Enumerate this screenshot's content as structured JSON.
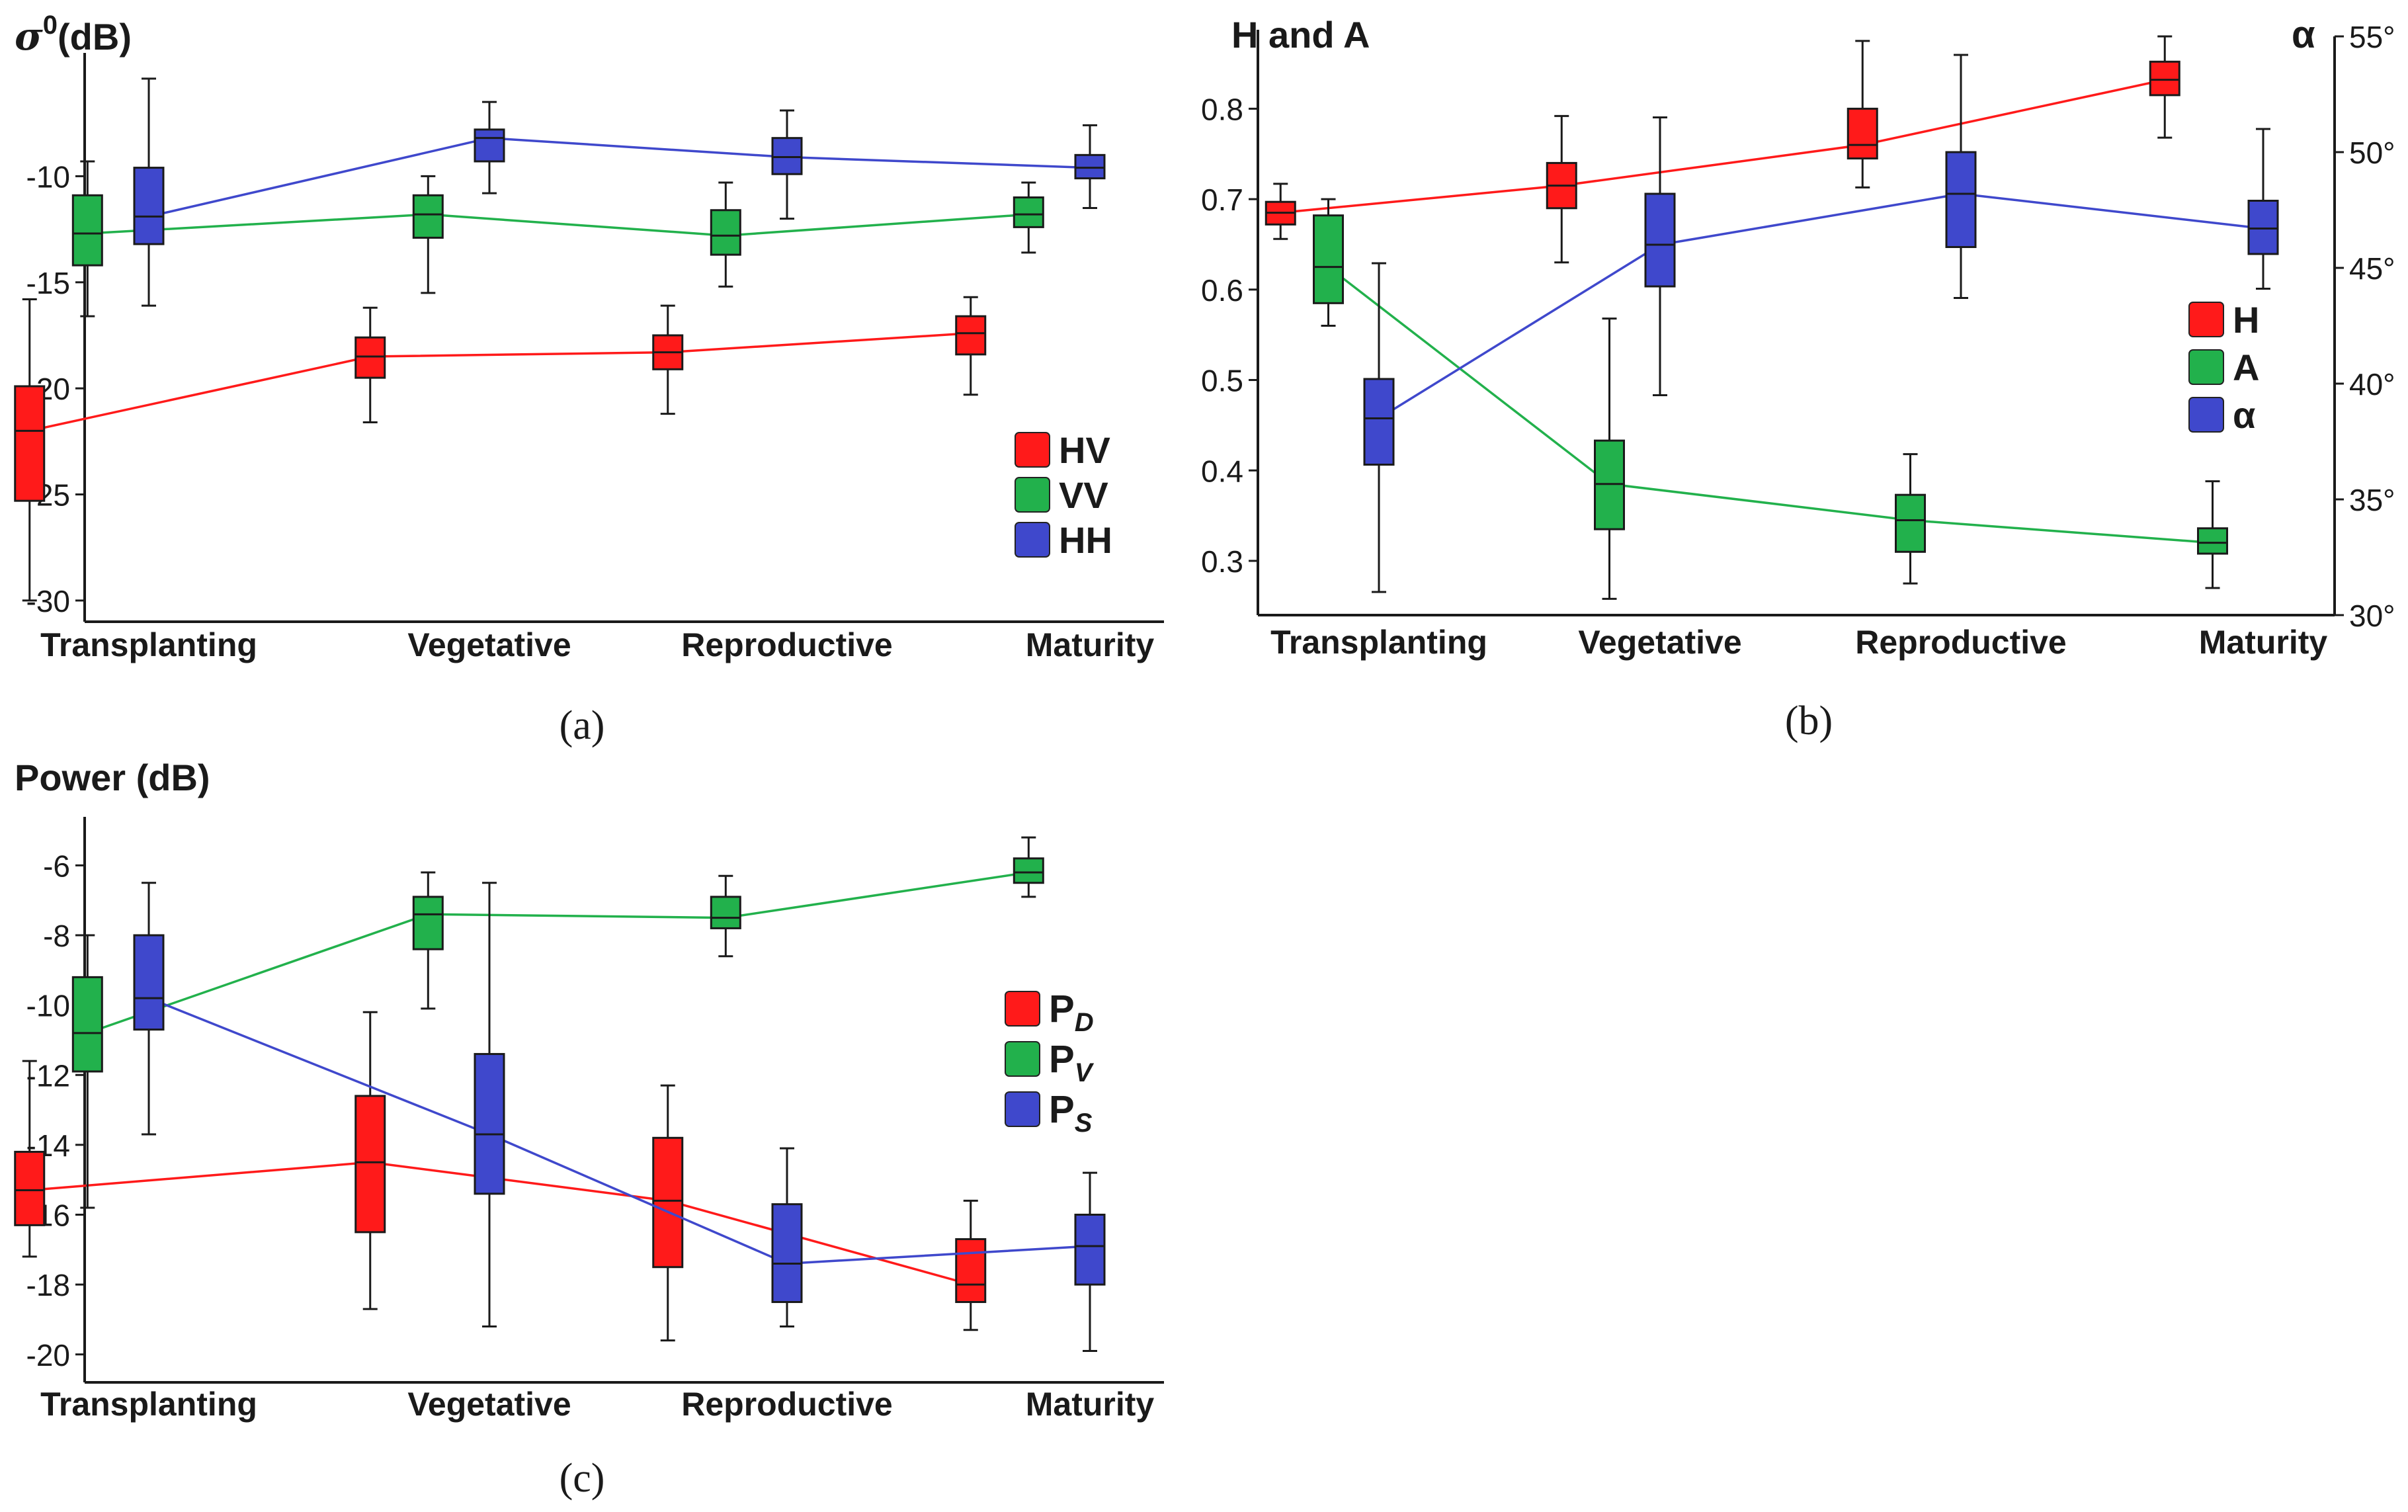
{
  "colors": {
    "red": "#ff1a1a",
    "green": "#22b14c",
    "blue": "#3f48cc",
    "axis": "#1a1a1a"
  },
  "panels": [
    {
      "id": "a",
      "caption": "(a)",
      "chart_data": {
        "type": "box",
        "title": "σ0(dB)",
        "title_main": "σ",
        "title_sup": "0",
        "title_unit": "(dB)",
        "categories": [
          "Transplanting",
          "Vegetative",
          "Reproductive",
          "Maturity"
        ],
        "ylim": [
          -31,
          -4.5
        ],
        "yticks": [
          -10,
          -15,
          -20,
          -25,
          -30
        ],
        "ytick_labels": [
          "-10",
          "-15",
          "-20",
          "-25",
          "-30"
        ],
        "legend_position": "bottom-right",
        "series": [
          {
            "name": "HV",
            "color": "red",
            "offset": -0.35,
            "boxes": [
              {
                "min": -30.0,
                "q1": -25.3,
                "median": -22.0,
                "q3": -19.9,
                "max": -15.8
              },
              {
                "min": -21.6,
                "q1": -19.5,
                "median": -18.5,
                "q3": -17.6,
                "max": -16.2
              },
              {
                "min": -21.2,
                "q1": -19.1,
                "median": -18.3,
                "q3": -17.5,
                "max": -16.1
              },
              {
                "min": -20.3,
                "q1": -18.4,
                "median": -17.4,
                "q3": -16.6,
                "max": -15.7
              }
            ]
          },
          {
            "name": "VV",
            "color": "green",
            "offset": -0.18,
            "boxes": [
              {
                "min": -16.6,
                "q1": -14.2,
                "median": -12.7,
                "q3": -10.9,
                "max": -9.3
              },
              {
                "min": -15.5,
                "q1": -12.9,
                "median": -11.8,
                "q3": -10.9,
                "max": -10.0
              },
              {
                "min": -15.2,
                "q1": -13.7,
                "median": -12.8,
                "q3": -11.6,
                "max": -10.3
              },
              {
                "min": -13.6,
                "q1": -12.4,
                "median": -11.8,
                "q3": -11.0,
                "max": -10.3
              }
            ]
          },
          {
            "name": "HH",
            "color": "blue",
            "offset": 0.0,
            "boxes": [
              {
                "min": -16.1,
                "q1": -13.2,
                "median": -11.9,
                "q3": -9.6,
                "max": -5.4
              },
              {
                "min": -10.8,
                "q1": -9.3,
                "median": -8.2,
                "q3": -7.8,
                "max": -6.5
              },
              {
                "min": -12.0,
                "q1": -9.9,
                "median": -9.1,
                "q3": -8.2,
                "max": -6.9
              },
              {
                "min": -11.5,
                "q1": -10.1,
                "median": -9.6,
                "q3": -9.0,
                "max": -7.6
              }
            ]
          }
        ]
      }
    },
    {
      "id": "b",
      "caption": "(b)",
      "chart_data": {
        "type": "box",
        "title": "H and A",
        "y2_title": "α",
        "categories": [
          "Transplanting",
          "Vegetative",
          "Reproductive",
          "Maturity"
        ],
        "ylim": [
          0.24,
          0.88
        ],
        "yticks": [
          0.8,
          0.7,
          0.6,
          0.5,
          0.4,
          0.3
        ],
        "ytick_labels": [
          "0.8",
          "0.7",
          "0.6",
          "0.5",
          "0.4",
          "0.3"
        ],
        "y2lim": [
          30,
          55
        ],
        "y2ticks": [
          55,
          50,
          45,
          40,
          35,
          30
        ],
        "y2tick_labels": [
          "55°",
          "50°",
          "45°",
          "40°",
          "35°",
          "30°"
        ],
        "legend_position": "right",
        "series": [
          {
            "name": "H",
            "color": "red",
            "offset": -0.35,
            "axis": "left",
            "boxes": [
              {
                "min": 0.656,
                "q1": 0.672,
                "median": 0.685,
                "q3": 0.697,
                "max": 0.717
              },
              {
                "min": 0.63,
                "q1": 0.69,
                "median": 0.715,
                "q3": 0.74,
                "max": 0.792
              },
              {
                "min": 0.713,
                "q1": 0.745,
                "median": 0.76,
                "q3": 0.8,
                "max": 0.875
              },
              {
                "min": 0.768,
                "q1": 0.815,
                "median": 0.832,
                "q3": 0.852,
                "max": 0.88
              }
            ]
          },
          {
            "name": "A",
            "color": "green",
            "offset": -0.18,
            "axis": "left",
            "boxes": [
              {
                "min": 0.56,
                "q1": 0.585,
                "median": 0.625,
                "q3": 0.682,
                "max": 0.7
              },
              {
                "min": 0.258,
                "q1": 0.335,
                "median": 0.385,
                "q3": 0.433,
                "max": 0.568
              },
              {
                "min": 0.275,
                "q1": 0.31,
                "median": 0.345,
                "q3": 0.373,
                "max": 0.418
              },
              {
                "min": 0.27,
                "q1": 0.308,
                "median": 0.32,
                "q3": 0.336,
                "max": 0.388
              }
            ]
          },
          {
            "name": "α",
            "color": "blue",
            "offset": 0.0,
            "axis": "right",
            "boxes": [
              {
                "min": 31.0,
                "q1": 36.5,
                "median": 38.5,
                "q3": 40.2,
                "max": 45.2
              },
              {
                "min": 39.5,
                "q1": 44.2,
                "median": 46.0,
                "q3": 48.2,
                "max": 51.5
              },
              {
                "min": 43.7,
                "q1": 45.9,
                "median": 48.2,
                "q3": 50.0,
                "max": 54.2
              },
              {
                "min": 44.1,
                "q1": 45.6,
                "median": 46.7,
                "q3": 47.9,
                "max": 51.0
              }
            ]
          }
        ]
      }
    },
    {
      "id": "c",
      "caption": "(c)",
      "chart_data": {
        "type": "box",
        "title": "Power (dB)",
        "categories": [
          "Transplanting",
          "Vegetative",
          "Reproductive",
          "Maturity"
        ],
        "ylim": [
          -20.8,
          -4.8
        ],
        "yticks": [
          -6,
          -8,
          -10,
          -12,
          -14,
          -16,
          -18,
          -20
        ],
        "ytick_labels": [
          "-6",
          "-8",
          "-10",
          "-12",
          "-14",
          "-16",
          "-18",
          "-20"
        ],
        "legend_position": "right",
        "series": [
          {
            "name": "PD",
            "name_main": "P",
            "name_sub": "D",
            "color": "red",
            "offset": -0.35,
            "boxes": [
              {
                "min": -17.2,
                "q1": -16.3,
                "median": -15.3,
                "q3": -14.2,
                "max": -11.6
              },
              {
                "min": -18.7,
                "q1": -16.5,
                "median": -14.5,
                "q3": -12.6,
                "max": -10.2
              },
              {
                "min": -19.6,
                "q1": -17.5,
                "median": -15.6,
                "q3": -13.8,
                "max": -12.3
              },
              {
                "min": -19.3,
                "q1": -18.5,
                "median": -18.0,
                "q3": -16.7,
                "max": -15.6
              }
            ]
          },
          {
            "name": "PV",
            "name_main": "P",
            "name_sub": "V",
            "color": "green",
            "offset": -0.18,
            "boxes": [
              {
                "min": -15.8,
                "q1": -11.9,
                "median": -10.8,
                "q3": -9.2,
                "max": -8.0
              },
              {
                "min": -10.1,
                "q1": -8.4,
                "median": -7.4,
                "q3": -6.9,
                "max": -6.2
              },
              {
                "min": -8.6,
                "q1": -7.8,
                "median": -7.5,
                "q3": -6.9,
                "max": -6.3
              },
              {
                "min": -6.9,
                "q1": -6.5,
                "median": -6.2,
                "q3": -5.8,
                "max": -5.2
              }
            ]
          },
          {
            "name": "PS",
            "name_main": "P",
            "name_sub": "S",
            "color": "blue",
            "offset": 0.0,
            "boxes": [
              {
                "min": -13.7,
                "q1": -10.7,
                "median": -9.8,
                "q3": -8.0,
                "max": -6.5
              },
              {
                "min": -19.2,
                "q1": -15.4,
                "median": -13.7,
                "q3": -11.4,
                "max": -6.5
              },
              {
                "min": -19.2,
                "q1": -18.5,
                "median": -17.4,
                "q3": -15.7,
                "max": -14.1
              },
              {
                "min": -19.9,
                "q1": -18.0,
                "median": -16.9,
                "q3": -16.0,
                "max": -14.8
              }
            ]
          }
        ]
      }
    }
  ]
}
